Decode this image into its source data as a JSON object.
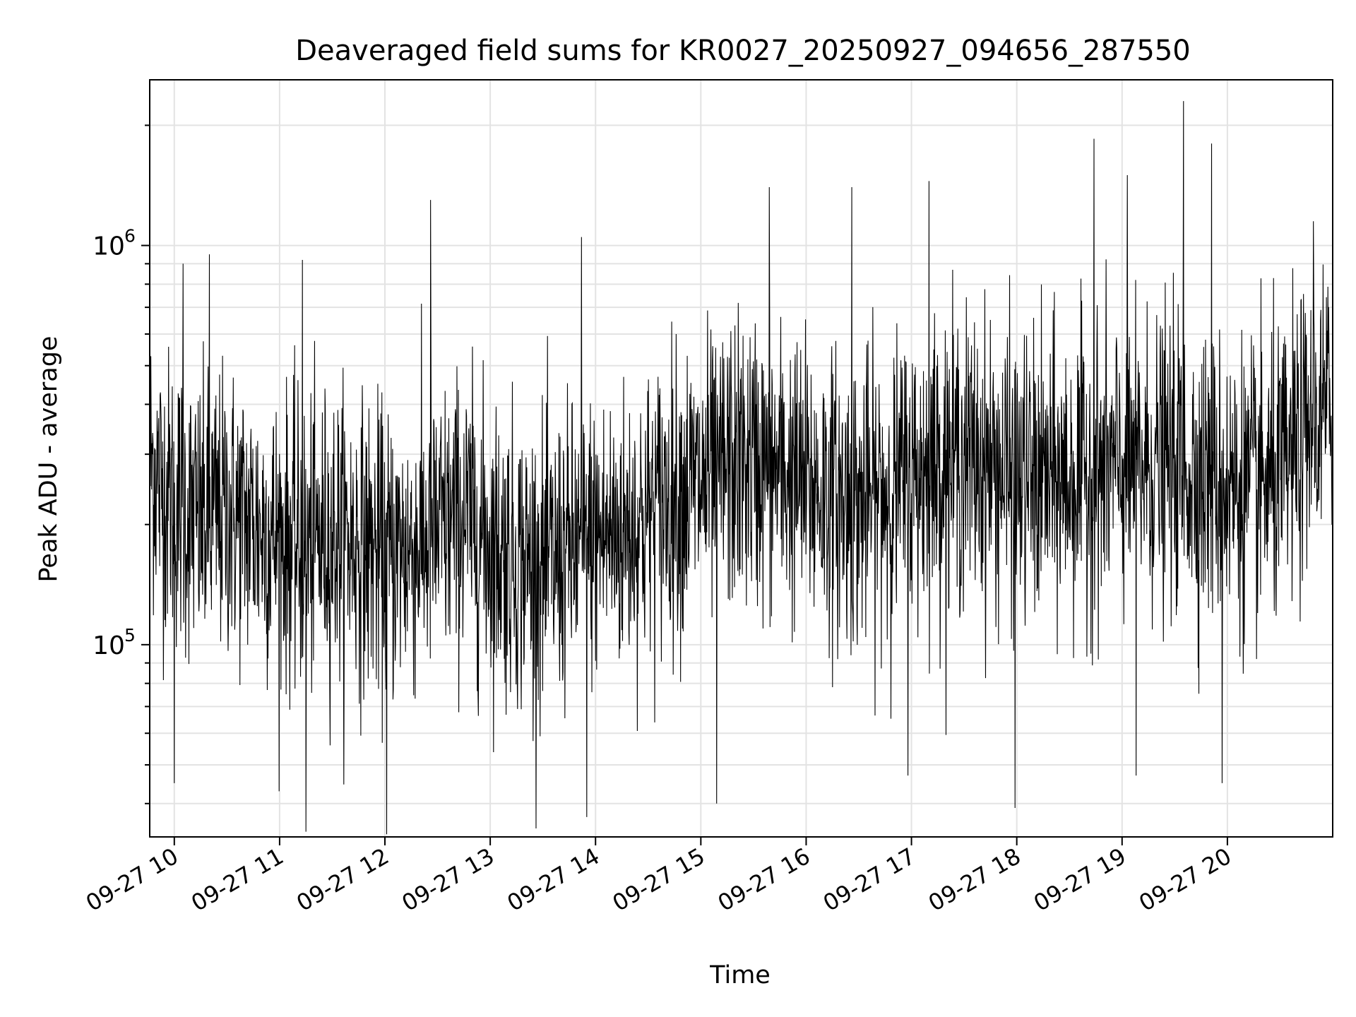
{
  "chart_data": {
    "type": "line",
    "title": "Deaveraged field sums for KR0027_20250927_094656_287550",
    "xlabel": "Time",
    "ylabel": "Peak ADU - average",
    "yscale": "log",
    "x_range": [
      "2025-09-27T09:46:00",
      "2025-09-27T21:00:00"
    ],
    "ylim": [
      33000,
      2600000
    ],
    "x_ticks": [
      "09-27 10",
      "09-27 11",
      "09-27 12",
      "09-27 13",
      "09-27 14",
      "09-27 15",
      "09-27 16",
      "09-27 17",
      "09-27 18",
      "09-27 19",
      "09-27 20"
    ],
    "y_ticks": [
      {
        "value": 100000,
        "base": "10",
        "exp": "5"
      },
      {
        "value": 1000000,
        "base": "10",
        "exp": "6"
      }
    ],
    "grid": true,
    "line_color": "#000000",
    "series": [
      {
        "name": "",
        "points": [
          [
            "2025-09-27T09:46",
            300000
          ],
          [
            "2025-09-27T09:52",
            250000
          ],
          [
            "2025-09-27T10:00",
            230000
          ],
          [
            "2025-09-27T10:15",
            200000
          ],
          [
            "2025-09-27T10:30",
            215000
          ],
          [
            "2025-09-27T10:45",
            200000
          ],
          [
            "2025-09-27T11:00",
            185000
          ],
          [
            "2025-09-27T11:15",
            175000
          ],
          [
            "2025-09-27T11:30",
            190000
          ],
          [
            "2025-09-27T11:45",
            180000
          ],
          [
            "2025-09-27T12:00",
            165000
          ],
          [
            "2025-09-27T12:15",
            175000
          ],
          [
            "2025-09-27T12:30",
            190000
          ],
          [
            "2025-09-27T12:45",
            210000
          ],
          [
            "2025-09-27T13:00",
            180000
          ],
          [
            "2025-09-27T13:15",
            165000
          ],
          [
            "2025-09-27T13:30",
            155000
          ],
          [
            "2025-09-27T13:45",
            170000
          ],
          [
            "2025-09-27T14:00",
            185000
          ],
          [
            "2025-09-27T14:15",
            190000
          ],
          [
            "2025-09-27T14:30",
            210000
          ],
          [
            "2025-09-27T14:45",
            240000
          ],
          [
            "2025-09-27T15:00",
            250000
          ],
          [
            "2025-09-27T15:15",
            280000
          ],
          [
            "2025-09-27T15:30",
            285000
          ],
          [
            "2025-09-27T15:45",
            270000
          ],
          [
            "2025-09-27T16:00",
            250000
          ],
          [
            "2025-09-27T16:15",
            235000
          ],
          [
            "2025-09-27T16:30",
            225000
          ],
          [
            "2025-09-27T16:45",
            240000
          ],
          [
            "2025-09-27T17:00",
            260000
          ],
          [
            "2025-09-27T17:15",
            285000
          ],
          [
            "2025-09-27T17:30",
            295000
          ],
          [
            "2025-09-27T17:45",
            280000
          ],
          [
            "2025-09-27T18:00",
            260000
          ],
          [
            "2025-09-27T18:15",
            255000
          ],
          [
            "2025-09-27T18:30",
            260000
          ],
          [
            "2025-09-27T18:45",
            270000
          ],
          [
            "2025-09-27T19:00",
            275000
          ],
          [
            "2025-09-27T19:15",
            280000
          ],
          [
            "2025-09-27T19:30",
            285000
          ],
          [
            "2025-09-27T19:45",
            265000
          ],
          [
            "2025-09-27T20:00",
            250000
          ],
          [
            "2025-09-27T20:15",
            245000
          ],
          [
            "2025-09-27T20:30",
            260000
          ],
          [
            "2025-09-27T20:45",
            330000
          ],
          [
            "2025-09-27T21:00",
            400000
          ]
        ],
        "spikes": [
          [
            "2025-09-27T10:05",
            900000
          ],
          [
            "2025-09-27T10:20",
            950000
          ],
          [
            "2025-09-27T11:13",
            920000
          ],
          [
            "2025-09-27T12:26",
            1300000
          ],
          [
            "2025-09-27T13:52",
            1050000
          ],
          [
            "2025-09-27T15:39",
            1400000
          ],
          [
            "2025-09-27T16:26",
            1400000
          ],
          [
            "2025-09-27T17:10",
            1450000
          ],
          [
            "2025-09-27T18:44",
            1850000
          ],
          [
            "2025-09-27T19:03",
            1500000
          ],
          [
            "2025-09-27T19:35",
            2300000
          ],
          [
            "2025-09-27T19:51",
            1800000
          ],
          [
            "2025-09-27T20:49",
            1150000
          ],
          [
            "2025-09-27T10:00",
            45000
          ],
          [
            "2025-09-27T11:15",
            34000
          ],
          [
            "2025-09-27T12:01",
            33500
          ],
          [
            "2025-09-27T13:55",
            37000
          ],
          [
            "2025-09-27T15:09",
            40000
          ],
          [
            "2025-09-27T17:59",
            39000
          ],
          [
            "2025-09-27T16:58",
            47000
          ],
          [
            "2025-09-27T19:08",
            47000
          ],
          [
            "2025-09-27T19:57",
            45000
          ]
        ]
      }
    ]
  }
}
